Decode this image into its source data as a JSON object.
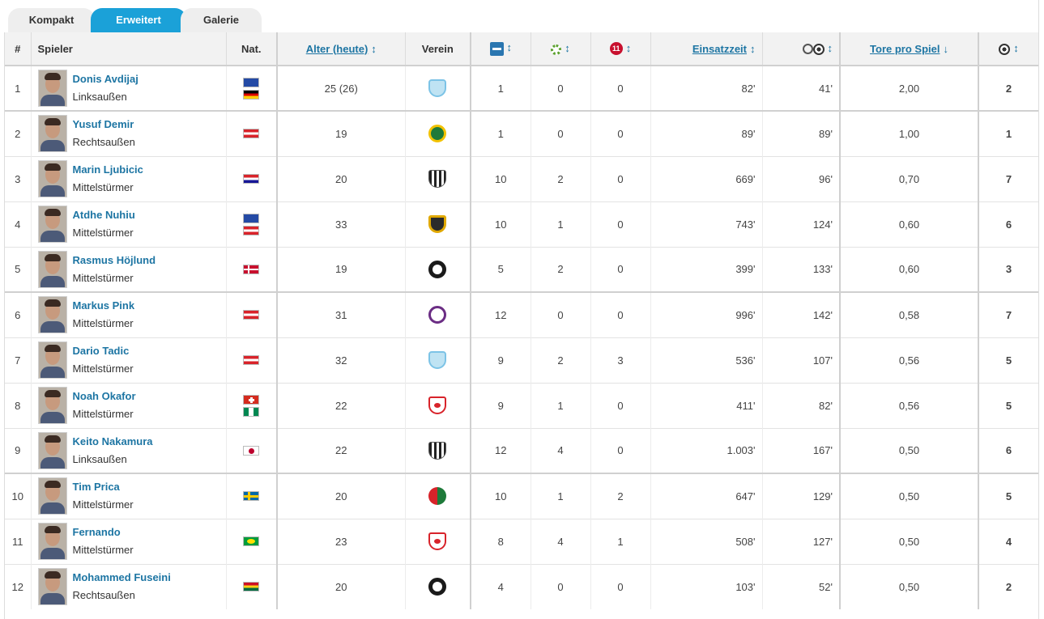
{
  "tabs": [
    "Kompakt",
    "Erweitert",
    "Galerie"
  ],
  "headers": {
    "num": "#",
    "player": "Spieler",
    "nat": "Nat.",
    "age": "Alter (heute)",
    "club": "Verein",
    "einsatzzeit": "Einsatzzeit",
    "tps": "Tore pro Spiel",
    "sort_arrow": "↕",
    "sort_down": "↓",
    "icons": {
      "apps": "substitution-icon",
      "assists": "assist-icon",
      "penalties": "penalty-icon",
      "mins_per_goal": "clock-goal-icon",
      "goals": "goal-ball-icon"
    },
    "penalty_icon_text": "11"
  },
  "colors": {
    "tab_active": "#1ba1d8",
    "link": "#1d75a3",
    "header_bg": "#f2f2f2"
  },
  "rows": [
    {
      "rank": "1",
      "name": "Donis Avdijaj",
      "position": "Linksaußen",
      "flags": [
        "kosovo-flag",
        "germany-flag"
      ],
      "age": "25 (26)",
      "club": "light-blue-crest",
      "apps": "1",
      "assists": "0",
      "penalties": "0",
      "minutes": "82'",
      "mins_per_goal": "41'",
      "goals_per_game": "2,00",
      "goals": "2"
    },
    {
      "rank": "2",
      "name": "Yusuf Demir",
      "position": "Rechtsaußen",
      "flags": [
        "austria-flag"
      ],
      "age": "19",
      "club": "green-gold-crest",
      "apps": "1",
      "assists": "0",
      "penalties": "0",
      "minutes": "89'",
      "mins_per_goal": "89'",
      "goals_per_game": "1,00",
      "goals": "1"
    },
    {
      "rank": "3",
      "name": "Marin Ljubicic",
      "position": "Mittelstürmer",
      "flags": [
        "croatia-flag"
      ],
      "age": "20",
      "club": "black-white-stripes-crest",
      "apps": "10",
      "assists": "2",
      "penalties": "0",
      "minutes": "669'",
      "mins_per_goal": "96'",
      "goals_per_game": "0,70",
      "goals": "7"
    },
    {
      "rank": "4",
      "name": "Atdhe Nuhiu",
      "position": "Mittelstürmer",
      "flags": [
        "kosovo-flag",
        "austria-flag"
      ],
      "age": "33",
      "club": "black-gold-crest",
      "apps": "10",
      "assists": "1",
      "penalties": "0",
      "minutes": "743'",
      "mins_per_goal": "124'",
      "goals_per_game": "0,60",
      "goals": "6"
    },
    {
      "rank": "5",
      "name": "Rasmus Höjlund",
      "position": "Mittelstürmer",
      "flags": [
        "denmark-flag"
      ],
      "age": "19",
      "club": "black-round-crest",
      "apps": "5",
      "assists": "2",
      "penalties": "0",
      "minutes": "399'",
      "mins_per_goal": "133'",
      "goals_per_game": "0,60",
      "goals": "3"
    },
    {
      "rank": "6",
      "name": "Markus Pink",
      "position": "Mittelstürmer",
      "flags": [
        "austria-flag"
      ],
      "age": "31",
      "club": "purple-round-crest",
      "apps": "12",
      "assists": "0",
      "penalties": "0",
      "minutes": "996'",
      "mins_per_goal": "142'",
      "goals_per_game": "0,58",
      "goals": "7"
    },
    {
      "rank": "7",
      "name": "Dario Tadic",
      "position": "Mittelstürmer",
      "flags": [
        "austria-flag"
      ],
      "age": "32",
      "club": "light-blue-crest",
      "apps": "9",
      "assists": "2",
      "penalties": "3",
      "minutes": "536'",
      "mins_per_goal": "107'",
      "goals_per_game": "0,56",
      "goals": "5"
    },
    {
      "rank": "8",
      "name": "Noah Okafor",
      "position": "Mittelstürmer",
      "flags": [
        "switzerland-flag",
        "nigeria-flag"
      ],
      "age": "22",
      "club": "red-bull-crest",
      "apps": "9",
      "assists": "1",
      "penalties": "0",
      "minutes": "411'",
      "mins_per_goal": "82'",
      "goals_per_game": "0,56",
      "goals": "5"
    },
    {
      "rank": "9",
      "name": "Keito Nakamura",
      "position": "Linksaußen",
      "flags": [
        "japan-flag"
      ],
      "age": "22",
      "club": "black-white-stripes-crest",
      "apps": "12",
      "assists": "4",
      "penalties": "0",
      "minutes": "1.003'",
      "mins_per_goal": "167'",
      "goals_per_game": "0,50",
      "goals": "6"
    },
    {
      "rank": "10",
      "name": "Tim Prica",
      "position": "Mittelstürmer",
      "flags": [
        "sweden-flag"
      ],
      "age": "20",
      "club": "red-green-crest",
      "apps": "10",
      "assists": "1",
      "penalties": "2",
      "minutes": "647'",
      "mins_per_goal": "129'",
      "goals_per_game": "0,50",
      "goals": "5"
    },
    {
      "rank": "11",
      "name": "Fernando",
      "position": "Mittelstürmer",
      "flags": [
        "brazil-flag"
      ],
      "age": "23",
      "club": "red-bull-crest",
      "apps": "8",
      "assists": "4",
      "penalties": "1",
      "minutes": "508'",
      "mins_per_goal": "127'",
      "goals_per_game": "0,50",
      "goals": "4"
    },
    {
      "rank": "12",
      "name": "Mohammed Fuseini",
      "position": "Rechtsaußen",
      "flags": [
        "ghana-flag"
      ],
      "age": "20",
      "club": "black-round-crest",
      "apps": "4",
      "assists": "0",
      "penalties": "0",
      "minutes": "103'",
      "mins_per_goal": "52'",
      "goals_per_game": "0,50",
      "goals": "2"
    }
  ]
}
